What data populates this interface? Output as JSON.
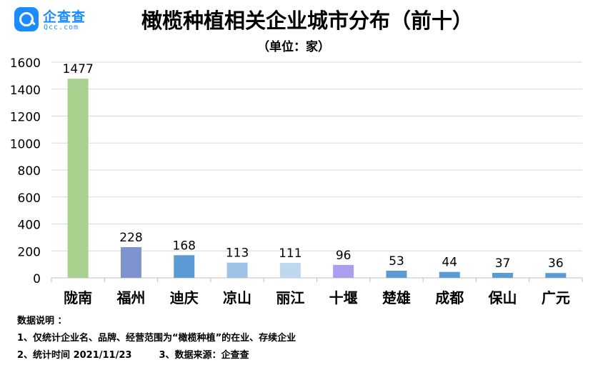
{
  "brand": {
    "name": "企查查",
    "sub": "Qcc.com",
    "color": "#1a8cff"
  },
  "chart_data": {
    "type": "bar",
    "title": "橄榄种植相关企业城市分布（前十）",
    "subtitle": "（单位：家）",
    "categories": [
      "陇南",
      "福州",
      "迪庆",
      "凉山",
      "丽江",
      "十堰",
      "楚雄",
      "成都",
      "保山",
      "广元"
    ],
    "values": [
      1477,
      228,
      168,
      113,
      111,
      96,
      53,
      44,
      37,
      36
    ],
    "colors": [
      "#a9d18e",
      "#7f93cf",
      "#5b9bd5",
      "#9dc3e6",
      "#bdd7ee",
      "#aa9ef0",
      "#5b9bd5",
      "#5b9bd5",
      "#5b9bd5",
      "#5b9bd5"
    ],
    "ylim": [
      0,
      1600
    ],
    "yticks": [
      0,
      200,
      400,
      600,
      800,
      1000,
      1200,
      1400,
      1600
    ],
    "xlabel": "",
    "ylabel": "",
    "grid": true
  },
  "notes": {
    "heading": "数据说明 ：",
    "line1": "1、仅统计企业名、品牌、经营范围为“橄榄种植”的在业、存续企业",
    "line2a": "2、统计时间 2021/11/23",
    "line2b": "3、数据来源：企查查"
  }
}
